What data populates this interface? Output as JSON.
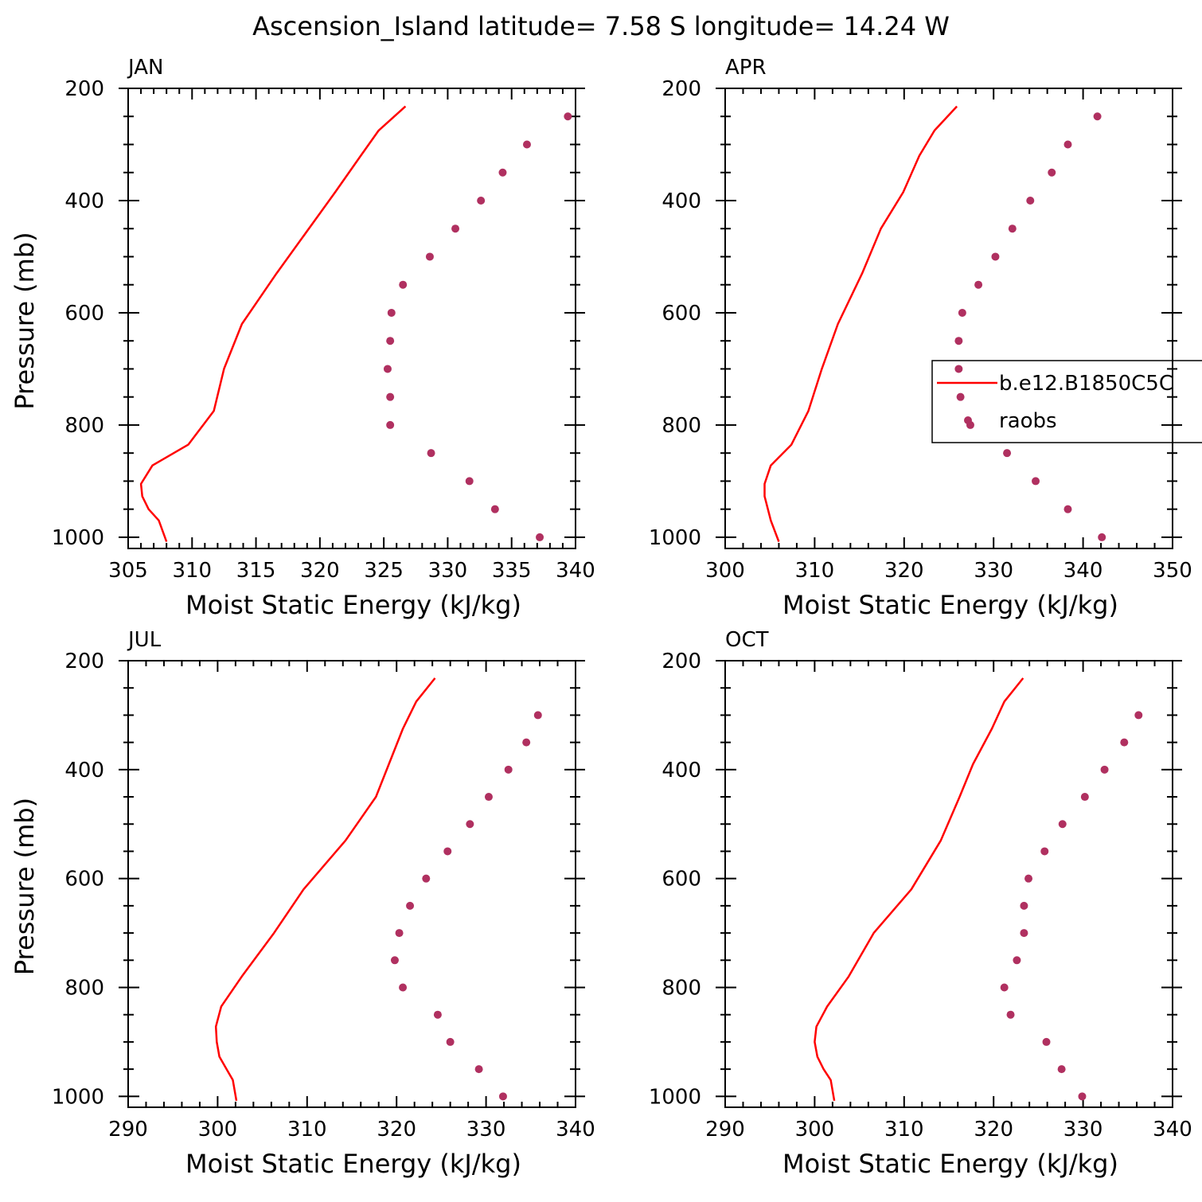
{
  "title": "Ascension_Island  latitude= 7.58 S longitude= 14.24 W",
  "colors": {
    "model_line": "#ff0000",
    "raobs_marker": "#b03060",
    "axis": "#000000",
    "background": "#ffffff"
  },
  "legend": {
    "entries": [
      {
        "label": "b.e12.B1850C5C",
        "style": "line"
      },
      {
        "label": "raobs",
        "style": "marker"
      }
    ],
    "location": "right-middle of APR panel"
  },
  "chart_data": [
    {
      "type": "line",
      "panel": "JAN",
      "xlabel": "Moist Static Energy (kJ/kg)",
      "ylabel": "Pressure (mb)",
      "xlim": [
        305,
        340
      ],
      "ylim": [
        1020,
        200
      ],
      "xticks": [
        305,
        310,
        315,
        320,
        325,
        330,
        335,
        340
      ],
      "yticks": [
        200,
        400,
        600,
        800,
        1000
      ],
      "series": [
        {
          "name": "b.e12.B1850C5C",
          "kind": "line",
          "x": [
            326.7,
            324.6,
            323.2,
            321.2,
            316.6,
            313.9,
            312.5,
            311.7,
            309.7,
            306.9,
            306.0,
            306.1,
            306.6,
            307.4,
            308.0
          ],
          "y": [
            232,
            275,
            320,
            385,
            530,
            620,
            700,
            775,
            835,
            872,
            905,
            927,
            950,
            970,
            1008
          ]
        },
        {
          "name": "raobs",
          "kind": "scatter",
          "x": [
            339.4,
            336.2,
            334.3,
            332.6,
            330.6,
            328.6,
            326.5,
            325.6,
            325.5,
            325.3,
            325.5,
            325.5,
            328.7,
            331.7,
            333.7,
            337.2
          ],
          "y": [
            250,
            300,
            350,
            400,
            450,
            500,
            550,
            600,
            650,
            700,
            750,
            800,
            850,
            900,
            950,
            1000
          ]
        }
      ]
    },
    {
      "type": "line",
      "panel": "APR",
      "xlabel": "Moist Static Energy (kJ/kg)",
      "ylabel": "",
      "xlim": [
        300,
        350
      ],
      "ylim": [
        1020,
        200
      ],
      "xticks": [
        300,
        310,
        320,
        330,
        340,
        350
      ],
      "yticks": [
        200,
        400,
        600,
        800,
        1000
      ],
      "series": [
        {
          "name": "b.e12.B1850C5C",
          "kind": "line",
          "x": [
            325.9,
            323.4,
            321.7,
            319.9,
            317.4,
            315.3,
            312.6,
            310.8,
            309.3,
            307.4,
            305.1,
            304.4,
            304.4,
            305.1,
            306.0
          ],
          "y": [
            232,
            275,
            320,
            385,
            450,
            530,
            620,
            700,
            775,
            835,
            872,
            905,
            927,
            970,
            1008
          ]
        },
        {
          "name": "raobs",
          "kind": "scatter",
          "x": [
            341.6,
            338.3,
            336.5,
            334.1,
            332.1,
            330.2,
            328.3,
            326.5,
            326.1,
            326.1,
            326.3,
            327.4,
            331.5,
            334.7,
            338.3,
            342.1
          ],
          "y": [
            250,
            300,
            350,
            400,
            450,
            500,
            550,
            600,
            650,
            700,
            750,
            800,
            850,
            900,
            950,
            1000
          ]
        }
      ]
    },
    {
      "type": "line",
      "panel": "JUL",
      "xlabel": "Moist Static Energy (kJ/kg)",
      "ylabel": "Pressure (mb)",
      "xlim": [
        290,
        340
      ],
      "ylim": [
        1020,
        200
      ],
      "xticks": [
        290,
        300,
        310,
        320,
        330,
        340
      ],
      "yticks": [
        200,
        400,
        600,
        800,
        1000
      ],
      "series": [
        {
          "name": "b.e12.B1850C5C",
          "kind": "line",
          "x": [
            324.3,
            322.2,
            320.7,
            317.7,
            314.3,
            309.6,
            306.3,
            302.7,
            300.4,
            299.8,
            299.9,
            300.2,
            301.0,
            301.7,
            302.1
          ],
          "y": [
            232,
            275,
            325,
            450,
            530,
            620,
            700,
            780,
            835,
            872,
            900,
            927,
            950,
            970,
            1008
          ]
        },
        {
          "name": "raobs",
          "kind": "scatter",
          "x": [
            335.8,
            334.5,
            332.5,
            330.3,
            328.2,
            325.7,
            323.3,
            321.5,
            320.3,
            319.8,
            320.7,
            324.6,
            326.0,
            329.2,
            331.9
          ],
          "y": [
            300,
            350,
            400,
            450,
            500,
            550,
            600,
            650,
            700,
            750,
            800,
            850,
            900,
            950,
            1000
          ]
        }
      ]
    },
    {
      "type": "line",
      "panel": "OCT",
      "xlabel": "Moist Static Energy (kJ/kg)",
      "ylabel": "",
      "xlim": [
        290,
        340
      ],
      "ylim": [
        1020,
        200
      ],
      "xticks": [
        290,
        300,
        310,
        320,
        330,
        340
      ],
      "yticks": [
        200,
        400,
        600,
        800,
        1000
      ],
      "series": [
        {
          "name": "b.e12.B1850C5C",
          "kind": "line",
          "x": [
            323.3,
            321.2,
            319.8,
            317.7,
            316.2,
            314.1,
            310.8,
            306.6,
            303.8,
            301.4,
            300.2,
            300.0,
            300.3,
            301.0,
            301.8,
            302.2
          ],
          "y": [
            232,
            275,
            325,
            390,
            450,
            530,
            620,
            700,
            780,
            835,
            872,
            900,
            927,
            950,
            970,
            1008
          ]
        },
        {
          "name": "raobs",
          "kind": "scatter",
          "x": [
            336.2,
            334.6,
            332.4,
            330.2,
            327.7,
            325.7,
            323.9,
            323.4,
            323.4,
            322.6,
            321.2,
            321.9,
            325.9,
            327.6,
            329.9
          ],
          "y": [
            300,
            350,
            400,
            450,
            500,
            550,
            600,
            650,
            700,
            750,
            800,
            850,
            900,
            950,
            1000
          ]
        }
      ]
    }
  ]
}
